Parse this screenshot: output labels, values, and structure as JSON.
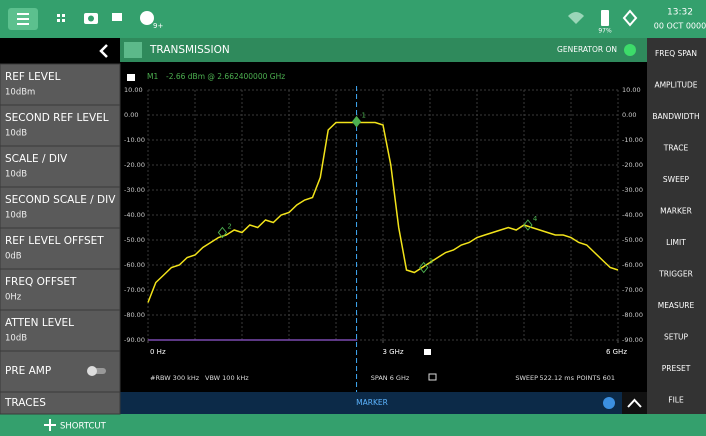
{
  "status_bar": {
    "notification_count": "9+",
    "battery": "97%",
    "time": "13:32",
    "date": "00 OCT 0000"
  },
  "left_panel": {
    "items": [
      {
        "label": "REF LEVEL",
        "value": "10dBm"
      },
      {
        "label": "SECOND REF LEVEL",
        "value": "10dB"
      },
      {
        "label": "SCALE / DIV",
        "value": "10dB"
      },
      {
        "label": "SECOND SCALE / DIV",
        "value": "10dB"
      },
      {
        "label": "REF LEVEL OFFSET",
        "value": "0dB"
      },
      {
        "label": "FREQ OFFSET",
        "value": "0Hz"
      },
      {
        "label": "ATTEN LEVEL",
        "value": "10dB"
      },
      {
        "label": "PRE AMP"
      },
      {
        "label": "TRACES"
      }
    ]
  },
  "right_panel": {
    "items": [
      "FREQ SPAN",
      "AMPLITUDE",
      "BANDWIDTH",
      "TRACE",
      "SWEEP",
      "MARKER",
      "LIMIT",
      "TRIGGER",
      "MEASURE",
      "SETUP",
      "PRESET",
      "FILE"
    ]
  },
  "chart_data": {
    "type": "line",
    "title": "TRANSMISSION",
    "generator_status": "GENERATOR ON",
    "marker_readout": {
      "name": "M1",
      "text": "-2.66 dBm @ 2.662400000 GHz"
    },
    "x": [
      0,
      0.1,
      0.2,
      0.3,
      0.4,
      0.5,
      0.6,
      0.7,
      0.8,
      0.9,
      1,
      1.1,
      1.2,
      1.3,
      1.4,
      1.5,
      1.6,
      1.7,
      1.8,
      1.9,
      2,
      2.1,
      2.2,
      2.3,
      2.4,
      2.5,
      2.6,
      2.7,
      2.8,
      2.9,
      3,
      3.1,
      3.2,
      3.3,
      3.4,
      3.5,
      3.6,
      3.7,
      3.8,
      3.9,
      4,
      4.1,
      4.2,
      4.3,
      4.4,
      4.5,
      4.6,
      4.7,
      4.8,
      4.9,
      5,
      5.1,
      5.2,
      5.3,
      5.4,
      5.5,
      5.6,
      5.7,
      5.8,
      5.9,
      6
    ],
    "series": [
      {
        "color": "#f2e31a",
        "values": [
          -75,
          -67,
          -64,
          -61,
          -60,
          -57,
          -56,
          -53,
          -51,
          -49,
          -48,
          -46,
          -47,
          -44,
          -45,
          -42,
          -43,
          -40,
          -39,
          -36,
          -34,
          -33,
          -25,
          -6,
          -3,
          -3,
          -3,
          -3,
          -3,
          -3,
          -4,
          -20,
          -45,
          -62,
          -63,
          -61,
          -59,
          -57,
          -55,
          -54,
          -52,
          -51,
          -49,
          -48,
          -47,
          -46,
          -45,
          -46,
          -44,
          -45,
          -46,
          -47,
          -48,
          -48,
          -49,
          -51,
          -52,
          -55,
          -58,
          -61,
          -62
        ]
      }
    ],
    "xlim": [
      0,
      6
    ],
    "ylim": [
      -90,
      10
    ],
    "xticks": [
      {
        "value": 0,
        "label": "0 Hz"
      },
      {
        "value": 3,
        "label": "3 GHz"
      },
      {
        "value": 6,
        "label": "6 GHz"
      }
    ],
    "yticks": [
      {
        "value": 10,
        "label": "10.00"
      },
      {
        "value": 0,
        "label": "0.00"
      },
      {
        "value": -10,
        "label": "-10.00"
      },
      {
        "value": -20,
        "label": "-20.00"
      },
      {
        "value": -30,
        "label": "-30.00"
      },
      {
        "value": -40,
        "label": "-40.00"
      },
      {
        "value": -50,
        "label": "-50.00"
      },
      {
        "value": -60,
        "label": "-60.00"
      },
      {
        "value": -70,
        "label": "-70.00"
      },
      {
        "value": -80,
        "label": "-80.00"
      },
      {
        "value": -90,
        "label": "-90.00"
      }
    ],
    "grid": true,
    "markers": [
      {
        "label": "1",
        "x": 2.6624,
        "y": -2.66
      },
      {
        "label": "2",
        "x": 0.95,
        "y": -47
      },
      {
        "label": "3",
        "x": 3.52,
        "y": -61
      },
      {
        "label": "4",
        "x": 4.85,
        "y": -44
      }
    ],
    "settings": {
      "rbw": "#RBW 300 kHz",
      "vbw": "VBW 100 kHz",
      "span": "SPAN 6 GHz",
      "sweep": "SWEEP",
      "sweep_time": "522.12 ms",
      "points": "POINTS 601"
    }
  },
  "bottom": {
    "tab": "MARKER",
    "shortcut": "SHORTCUT"
  }
}
